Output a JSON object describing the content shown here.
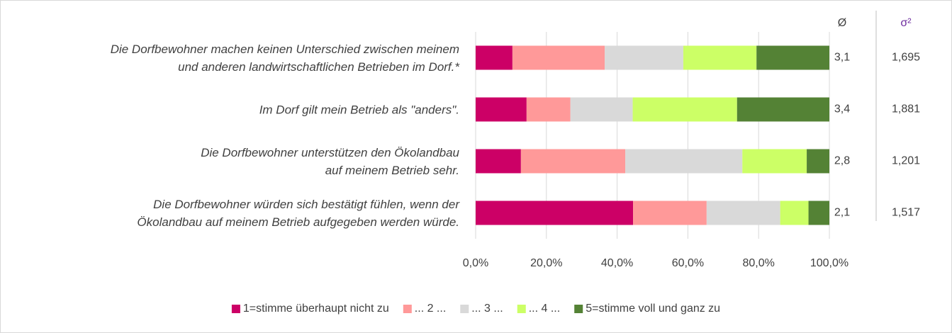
{
  "chart_data": {
    "type": "stacked_barh",
    "categories": [
      "Die Dorfbewohner machen keinen Unterschied zwischen meinem\nund anderen landwirtschaftlichen Betrieben im Dorf.*",
      "Im Dorf gilt mein Betrieb als \"anders\".",
      "Die Dorfbewohner unterstützen den Ökolandbau\nauf meinem Betrieb sehr.",
      "Die Dorfbewohner würden sich bestätigt fühlen, wenn der\nÖkolandbau auf meinem Betrieb aufgegeben werden würde."
    ],
    "series": [
      {
        "name": "1=stimme überhaupt nicht zu",
        "color": "#cc0066",
        "values": [
          10.4,
          14.4,
          12.8,
          44.5
        ]
      },
      {
        "name": "... 2 ...",
        "color": "#ff9999",
        "values": [
          26.1,
          12.4,
          29.5,
          20.8
        ]
      },
      {
        "name": "... 3 ...",
        "color": "#d9d9d9",
        "values": [
          22.2,
          17.6,
          33.1,
          20.8
        ]
      },
      {
        "name": "... 4 ...",
        "color": "#ccff66",
        "values": [
          20.7,
          29.5,
          18.2,
          8.0
        ]
      },
      {
        "name": "5=stimme voll und ganz zu",
        "color": "#548235",
        "values": [
          20.6,
          26.1,
          6.4,
          5.9
        ]
      }
    ],
    "xlim": [
      0,
      100
    ],
    "xticks": [
      {
        "value": 0,
        "label": "0,0%"
      },
      {
        "value": 20,
        "label": "20,0%"
      },
      {
        "value": 40,
        "label": "40,0%"
      },
      {
        "value": 60,
        "label": "60,0%"
      },
      {
        "value": 80,
        "label": "80,0%"
      },
      {
        "value": 100,
        "label": "100,0%"
      }
    ],
    "grid": true,
    "legend": "bottom",
    "mean_header": "Ø",
    "means": [
      {
        "value": 3.1,
        "label": "3,1"
      },
      {
        "value": 3.4,
        "label": "3,4"
      },
      {
        "value": 2.8,
        "label": "2,8"
      },
      {
        "value": 2.1,
        "label": "2,1"
      }
    ],
    "variance_header": "σ²",
    "variances": [
      {
        "value": 1.695,
        "label": "1,695"
      },
      {
        "value": 1.881,
        "label": "1,881"
      },
      {
        "value": 1.201,
        "label": "1,201"
      },
      {
        "value": 1.517,
        "label": "1,517"
      }
    ]
  }
}
